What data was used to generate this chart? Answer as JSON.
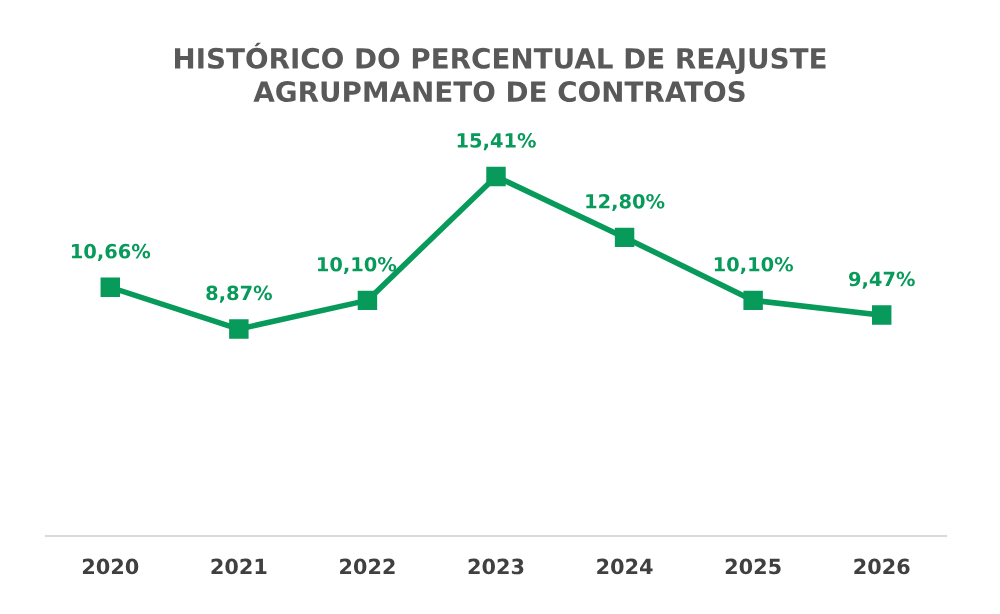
{
  "chart_data": {
    "type": "line",
    "title": "HISTÓRICO DO PERCENTUAL DE REAJUSTE\nAGRUPMANETO DE CONTRATOS",
    "categories": [
      "2020",
      "2021",
      "2022",
      "2023",
      "2024",
      "2025",
      "2026"
    ],
    "series": [
      {
        "color": "#079a5a",
        "values": [
          10.66,
          8.87,
          10.1,
          15.41,
          12.8,
          10.1,
          9.47
        ],
        "value_labels": [
          "10,66%",
          "8,87%",
          "10,10%",
          "15,41%",
          "12,80%",
          "10,10%",
          "9,47%"
        ]
      }
    ],
    "tick_labels": "x",
    "grid": false,
    "legend": false,
    "marker": "square",
    "line_style": "solid"
  }
}
